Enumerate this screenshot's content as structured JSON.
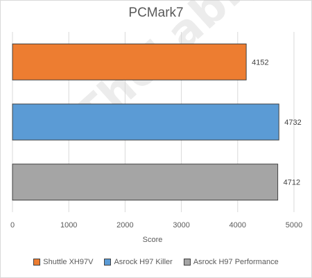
{
  "chart_data": {
    "type": "bar",
    "orientation": "horizontal",
    "title": "PCMark7",
    "xlabel": "Score",
    "ylabel": "",
    "xlim": [
      0,
      5000
    ],
    "xticks": [
      0,
      1000,
      2000,
      3000,
      4000,
      5000
    ],
    "grid": true,
    "legend_position": "bottom",
    "series": [
      {
        "name": "Shuttle XH97V",
        "value": 4152,
        "color": "#ed7d31"
      },
      {
        "name": "Asrock H97 Killer",
        "value": 4732,
        "color": "#5b9bd5"
      },
      {
        "name": "Asrock H97 Performance",
        "value": 4712,
        "color": "#a5a5a5"
      }
    ]
  },
  "watermark": "TheLab.gr"
}
